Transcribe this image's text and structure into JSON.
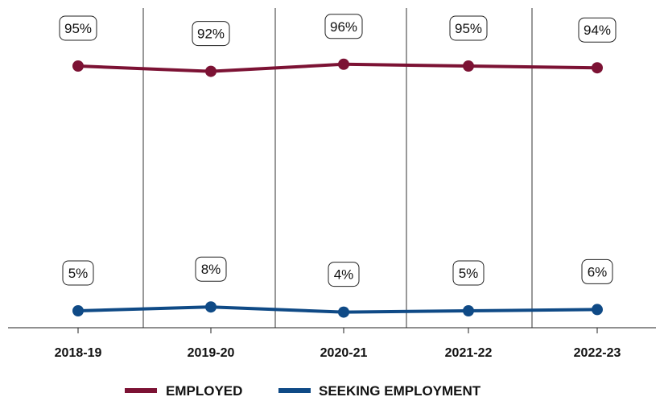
{
  "chart_data": {
    "type": "line",
    "categories": [
      "2018-19",
      "2019-20",
      "2020-21",
      "2021-22",
      "2022-23"
    ],
    "series": [
      {
        "name": "EMPLOYED",
        "color": "#7c1234",
        "values": [
          95,
          92,
          96,
          95,
          94
        ],
        "labels": [
          "95%",
          "92%",
          "96%",
          "95%",
          "94%"
        ]
      },
      {
        "name": "SEEKING EMPLOYMENT",
        "color": "#0f4a86",
        "values": [
          5,
          8,
          4,
          5,
          6
        ],
        "labels": [
          "5%",
          "8%",
          "4%",
          "5%",
          "6%"
        ]
      }
    ],
    "grid": "vertical separators between categories",
    "legend": "bottom-center"
  }
}
